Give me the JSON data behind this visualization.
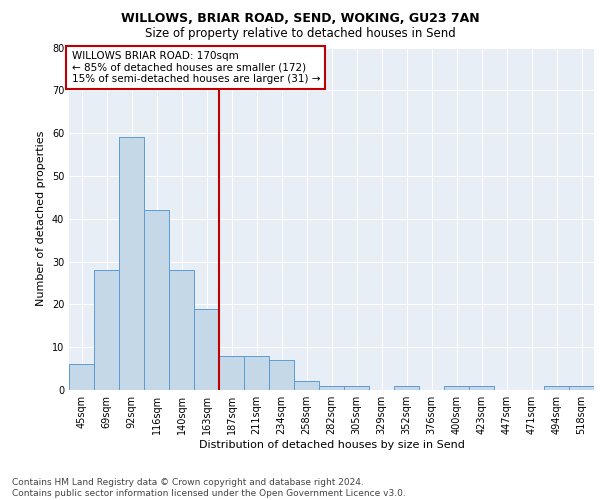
{
  "title1": "WILLOWS, BRIAR ROAD, SEND, WOKING, GU23 7AN",
  "title2": "Size of property relative to detached houses in Send",
  "xlabel": "Distribution of detached houses by size in Send",
  "ylabel": "Number of detached properties",
  "categories": [
    "45sqm",
    "69sqm",
    "92sqm",
    "116sqm",
    "140sqm",
    "163sqm",
    "187sqm",
    "211sqm",
    "234sqm",
    "258sqm",
    "282sqm",
    "305sqm",
    "329sqm",
    "352sqm",
    "376sqm",
    "400sqm",
    "423sqm",
    "447sqm",
    "471sqm",
    "494sqm",
    "518sqm"
  ],
  "values": [
    6,
    28,
    59,
    42,
    28,
    19,
    8,
    8,
    7,
    2,
    1,
    1,
    0,
    1,
    0,
    1,
    1,
    0,
    0,
    1,
    1
  ],
  "bar_color": "#c5d8e8",
  "bar_edge_color": "#5b9bd5",
  "vline_x": 5.5,
  "vline_color": "#c00000",
  "annotation_text": "WILLOWS BRIAR ROAD: 170sqm\n← 85% of detached houses are smaller (172)\n15% of semi-detached houses are larger (31) →",
  "annotation_box_color": "white",
  "annotation_box_edge": "#c00000",
  "ylim": [
    0,
    80
  ],
  "yticks": [
    0,
    10,
    20,
    30,
    40,
    50,
    60,
    70,
    80
  ],
  "background_color": "#e8eef6",
  "footer_text": "Contains HM Land Registry data © Crown copyright and database right 2024.\nContains public sector information licensed under the Open Government Licence v3.0.",
  "title1_fontsize": 9,
  "title2_fontsize": 8.5,
  "xlabel_fontsize": 8,
  "ylabel_fontsize": 8,
  "tick_fontsize": 7,
  "annotation_fontsize": 7.5,
  "footer_fontsize": 6.5
}
